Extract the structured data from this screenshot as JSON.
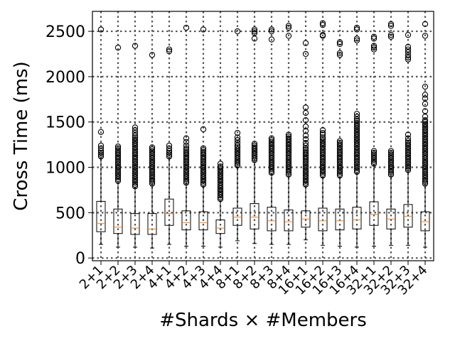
{
  "chart_data": {
    "type": "boxplot",
    "title": "",
    "xlabel": "#Shards × #Members",
    "ylabel": "Cross Time (ms)",
    "ylim": [
      -30,
      2720
    ],
    "yticks": [
      0,
      500,
      1000,
      1500,
      2000,
      2500
    ],
    "grid": "dotted",
    "colors": {
      "box": "#000000",
      "median": "#ff7f0e",
      "grid": "#555555",
      "flier": "#000000"
    },
    "categories": [
      "2+1",
      "2+2",
      "2+3",
      "2+4",
      "4+1",
      "4+2",
      "4+3",
      "4+4",
      "8+1",
      "8+2",
      "8+3",
      "8+4",
      "16+1",
      "16+2",
      "16+3",
      "16+4",
      "32+1",
      "32+2",
      "32+3",
      "32+4"
    ],
    "boxes": [
      {
        "label": "2+1",
        "whislo": 150,
        "q1": 290,
        "med": 380,
        "q3": 625,
        "whishi": 1100,
        "fliers": [
          1120,
          1140,
          1160,
          1180,
          1210,
          1240,
          1390,
          2520
        ]
      },
      {
        "label": "2+2",
        "whislo": 120,
        "q1": 270,
        "med": 340,
        "q3": 540,
        "whishi": 830,
        "fliers": [
          850,
          870,
          890,
          910,
          930,
          950,
          970,
          990,
          1010,
          1030,
          1050,
          1070,
          1090,
          1110,
          1130,
          1150,
          1170,
          1190,
          1210,
          1230,
          2320
        ]
      },
      {
        "label": "2+3",
        "whislo": 120,
        "q1": 260,
        "med": 330,
        "q3": 490,
        "whishi": 770,
        "fliers": [
          790,
          810,
          830,
          850,
          870,
          890,
          910,
          930,
          950,
          970,
          990,
          1010,
          1030,
          1050,
          1070,
          1090,
          1110,
          1130,
          1150,
          1170,
          1190,
          1210,
          1230,
          1250,
          1270,
          1290,
          1310,
          1330,
          1350,
          1380,
          1410,
          1440,
          2340
        ]
      },
      {
        "label": "2+4",
        "whislo": 110,
        "q1": 260,
        "med": 320,
        "q3": 490,
        "whishi": 800,
        "fliers": [
          820,
          840,
          860,
          880,
          900,
          920,
          940,
          960,
          980,
          1000,
          1020,
          1040,
          1060,
          1080,
          1100,
          1120,
          1140,
          1160,
          1180,
          1200,
          1220,
          2240
        ]
      },
      {
        "label": "4+1",
        "whislo": 150,
        "q1": 360,
        "med": 490,
        "q3": 650,
        "whishi": 1100,
        "fliers": [
          1120,
          1140,
          1160,
          1180,
          1210,
          1240,
          2280,
          2300
        ]
      },
      {
        "label": "4+2",
        "whislo": 130,
        "q1": 310,
        "med": 390,
        "q3": 520,
        "whishi": 810,
        "fliers": [
          830,
          850,
          870,
          890,
          910,
          930,
          950,
          970,
          990,
          1010,
          1030,
          1050,
          1070,
          1090,
          1110,
          1130,
          1150,
          1170,
          1190,
          1210,
          1240,
          1280,
          1320,
          2540
        ]
      },
      {
        "label": "4+3",
        "whislo": 130,
        "q1": 310,
        "med": 390,
        "q3": 510,
        "whishi": 790,
        "fliers": [
          810,
          830,
          850,
          870,
          890,
          910,
          930,
          950,
          970,
          990,
          1010,
          1030,
          1050,
          1070,
          1090,
          1110,
          1130,
          1150,
          1170,
          1190,
          1210,
          1420,
          2520
        ]
      },
      {
        "label": "4+4",
        "whislo": 120,
        "q1": 270,
        "med": 330,
        "q3": 420,
        "whishi": 630,
        "fliers": [
          650,
          670,
          690,
          710,
          730,
          750,
          770,
          790,
          810,
          830,
          850,
          870,
          890,
          910,
          930,
          950,
          970,
          990,
          1010,
          1040
        ]
      },
      {
        "label": "8+1",
        "whislo": 190,
        "q1": 360,
        "med": 450,
        "q3": 550,
        "whishi": 1000,
        "fliers": [
          1020,
          1040,
          1060,
          1080,
          1100,
          1120,
          1140,
          1160,
          1180,
          1200,
          1220,
          1240,
          1270,
          1300,
          1330,
          1380,
          2500
        ]
      },
      {
        "label": "8+2",
        "whislo": 160,
        "q1": 320,
        "med": 450,
        "q3": 600,
        "whishi": 1060,
        "fliers": [
          1080,
          1100,
          1120,
          1140,
          1160,
          1180,
          1200,
          1220,
          1240,
          1260,
          2420,
          2480,
          2500,
          2520
        ]
      },
      {
        "label": "8+3",
        "whislo": 150,
        "q1": 300,
        "med": 410,
        "q3": 560,
        "whishi": 920,
        "fliers": [
          940,
          960,
          980,
          1000,
          1020,
          1040,
          1060,
          1080,
          1100,
          1120,
          1140,
          1160,
          1180,
          1200,
          1220,
          1240,
          1260,
          1280,
          1300,
          1320,
          2410,
          2500,
          2520
        ]
      },
      {
        "label": "8+4",
        "whislo": 150,
        "q1": 300,
        "med": 400,
        "q3": 530,
        "whishi": 900,
        "fliers": [
          920,
          940,
          960,
          980,
          1000,
          1020,
          1040,
          1060,
          1080,
          1100,
          1120,
          1140,
          1160,
          1180,
          1200,
          1220,
          1240,
          1260,
          1280,
          1300,
          1320,
          1340,
          1360,
          2450,
          2540,
          2560
        ]
      },
      {
        "label": "16+1",
        "whislo": 200,
        "q1": 340,
        "med": 430,
        "q3": 520,
        "whishi": 790,
        "fliers": [
          810,
          830,
          850,
          870,
          890,
          910,
          930,
          950,
          970,
          990,
          1010,
          1030,
          1050,
          1070,
          1090,
          1110,
          1130,
          1150,
          1170,
          1190,
          1210,
          1240,
          1270,
          1310,
          1350,
          1400,
          1450,
          1520,
          1600,
          1660,
          2250,
          2370
        ]
      },
      {
        "label": "16+2",
        "whislo": 140,
        "q1": 300,
        "med": 410,
        "q3": 550,
        "whishi": 890,
        "fliers": [
          910,
          930,
          950,
          970,
          990,
          1010,
          1030,
          1050,
          1070,
          1090,
          1110,
          1130,
          1150,
          1170,
          1190,
          1210,
          1230,
          1250,
          1270,
          1290,
          1310,
          1330,
          1360,
          1380,
          1410,
          2450,
          2460,
          2570,
          2590
        ]
      },
      {
        "label": "16+3",
        "whislo": 130,
        "q1": 310,
        "med": 410,
        "q3": 540,
        "whishi": 890,
        "fliers": [
          910,
          930,
          950,
          970,
          990,
          1010,
          1030,
          1050,
          1070,
          1090,
          1110,
          1130,
          1150,
          1170,
          1190,
          1210,
          1230,
          1250,
          1270,
          1290,
          2240,
          2260,
          2360,
          2380
        ]
      },
      {
        "label": "16+4",
        "whislo": 120,
        "q1": 320,
        "med": 420,
        "q3": 560,
        "whishi": 930,
        "fliers": [
          950,
          970,
          990,
          1010,
          1030,
          1050,
          1070,
          1090,
          1110,
          1130,
          1150,
          1170,
          1190,
          1210,
          1230,
          1250,
          1270,
          1290,
          1310,
          1330,
          1350,
          1370,
          1390,
          1410,
          1430,
          1450,
          1470,
          1490,
          1510,
          1530,
          1560,
          1590,
          2400,
          2420,
          2520,
          2540
        ]
      },
      {
        "label": "32+1",
        "whislo": 130,
        "q1": 360,
        "med": 480,
        "q3": 620,
        "whishi": 1020,
        "fliers": [
          1040,
          1060,
          1080,
          1100,
          1120,
          1140,
          1160,
          1180,
          2300,
          2320,
          2340,
          2420,
          2440
        ]
      },
      {
        "label": "32+2",
        "whislo": 140,
        "q1": 320,
        "med": 430,
        "q3": 540,
        "whishi": 900,
        "fliers": [
          920,
          940,
          960,
          980,
          1000,
          1020,
          1040,
          1060,
          1080,
          1100,
          1120,
          1140,
          1160,
          1180,
          2440,
          2460,
          2560,
          2580
        ]
      },
      {
        "label": "32+3",
        "whislo": 140,
        "q1": 340,
        "med": 460,
        "q3": 590,
        "whishi": 950,
        "fliers": [
          970,
          990,
          1010,
          1030,
          1050,
          1070,
          1090,
          1110,
          1130,
          1150,
          1170,
          1190,
          1210,
          1230,
          1250,
          1270,
          1290,
          1320,
          1360,
          2190,
          2210,
          2240,
          2270,
          2300,
          2330,
          2460
        ]
      },
      {
        "label": "32+4",
        "whislo": 120,
        "q1": 300,
        "med": 400,
        "q3": 510,
        "whishi": 800,
        "fliers": [
          820,
          840,
          860,
          880,
          900,
          920,
          940,
          960,
          980,
          1000,
          1020,
          1040,
          1060,
          1080,
          1100,
          1120,
          1140,
          1160,
          1180,
          1200,
          1220,
          1240,
          1260,
          1280,
          1300,
          1320,
          1340,
          1360,
          1380,
          1400,
          1420,
          1440,
          1460,
          1480,
          1500,
          1520,
          1560,
          1620,
          1700,
          1760,
          1800,
          1890,
          2450,
          2580
        ]
      }
    ]
  }
}
